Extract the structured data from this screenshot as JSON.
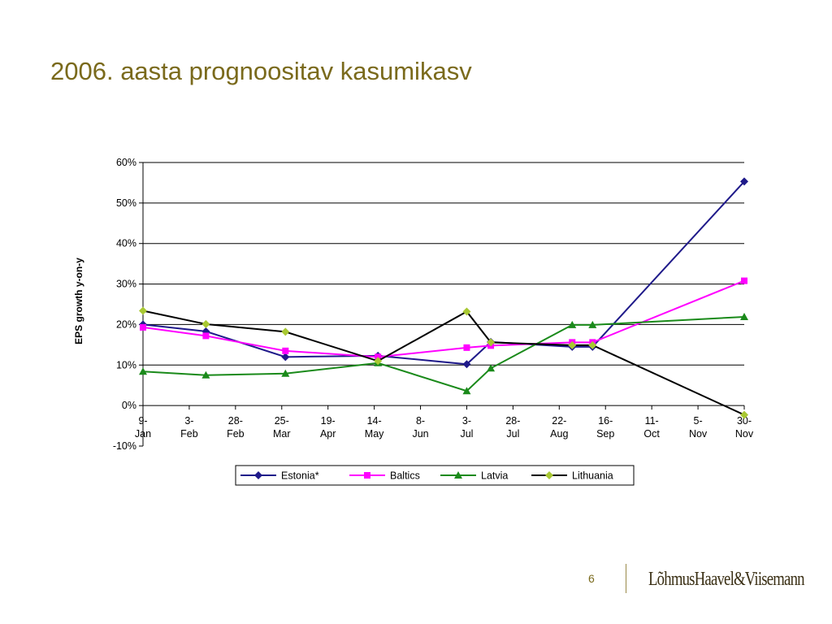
{
  "slide": {
    "title": "2006. aasta prognoositav kasumikasv",
    "page_number": "6",
    "brand_logo": "LõhmusHaavel&Viisemann"
  },
  "colors": {
    "title": "#7a6a1c",
    "estonia": "#1f1a8a",
    "baltics": "#ff00ff",
    "latvia": "#1a8a1a",
    "lithuania": "#000000",
    "lithuania_marker": "#a8c832"
  },
  "chart_data": {
    "type": "line",
    "ylabel": "EPS growth y-on-y",
    "xlabel": "",
    "ylim": [
      -10,
      60
    ],
    "yticks": [
      -10,
      0,
      10,
      20,
      30,
      40,
      50,
      60
    ],
    "ytick_labels": [
      "-10%",
      "0%",
      "10%",
      "20%",
      "30%",
      "40%",
      "50%",
      "60%"
    ],
    "grid": true,
    "legend_position": "bottom",
    "x_date_ticks": [
      {
        "date": "2006-01-09",
        "line1": "9-",
        "line2": "Jan"
      },
      {
        "date": "2006-02-03",
        "line1": "3-",
        "line2": "Feb"
      },
      {
        "date": "2006-02-28",
        "line1": "28-",
        "line2": "Feb"
      },
      {
        "date": "2006-03-25",
        "line1": "25-",
        "line2": "Mar"
      },
      {
        "date": "2006-04-19",
        "line1": "19-",
        "line2": "Apr"
      },
      {
        "date": "2006-05-14",
        "line1": "14-",
        "line2": "May"
      },
      {
        "date": "2006-06-08",
        "line1": "8-",
        "line2": "Jun"
      },
      {
        "date": "2006-07-03",
        "line1": "3-",
        "line2": "Jul"
      },
      {
        "date": "2006-07-28",
        "line1": "28-",
        "line2": "Jul"
      },
      {
        "date": "2006-08-22",
        "line1": "22-",
        "line2": "Aug"
      },
      {
        "date": "2006-09-16",
        "line1": "16-",
        "line2": "Sep"
      },
      {
        "date": "2006-10-11",
        "line1": "11-",
        "line2": "Oct"
      },
      {
        "date": "2006-11-05",
        "line1": "5-",
        "line2": "Nov"
      },
      {
        "date": "2006-11-30",
        "line1": "30-",
        "line2": "Nov"
      }
    ],
    "series": [
      {
        "name": "Estonia*",
        "color": "#1f1a8a",
        "marker": "diamond",
        "points": [
          {
            "date": "2006-01-09",
            "y": 20.0
          },
          {
            "date": "2006-02-12",
            "y": 18.3
          },
          {
            "date": "2006-03-27",
            "y": 12.0
          },
          {
            "date": "2006-05-16",
            "y": 12.3
          },
          {
            "date": "2006-07-03",
            "y": 10.2
          },
          {
            "date": "2006-07-16",
            "y": 15.7
          },
          {
            "date": "2006-08-29",
            "y": 14.5
          },
          {
            "date": "2006-09-09",
            "y": 14.5
          },
          {
            "date": "2006-11-30",
            "y": 55.3
          }
        ]
      },
      {
        "name": "Baltics",
        "color": "#ff00ff",
        "marker": "square",
        "points": [
          {
            "date": "2006-01-09",
            "y": 19.3
          },
          {
            "date": "2006-02-12",
            "y": 17.2
          },
          {
            "date": "2006-03-27",
            "y": 13.5
          },
          {
            "date": "2006-05-16",
            "y": 12.0
          },
          {
            "date": "2006-07-03",
            "y": 14.3
          },
          {
            "date": "2006-07-16",
            "y": 14.8
          },
          {
            "date": "2006-08-29",
            "y": 15.6
          },
          {
            "date": "2006-09-09",
            "y": 15.6
          },
          {
            "date": "2006-11-30",
            "y": 30.8
          }
        ]
      },
      {
        "name": "Latvia",
        "color": "#1a8a1a",
        "marker": "triangle",
        "points": [
          {
            "date": "2006-01-09",
            "y": 8.4
          },
          {
            "date": "2006-02-12",
            "y": 7.5
          },
          {
            "date": "2006-03-27",
            "y": 7.9
          },
          {
            "date": "2006-05-16",
            "y": 10.5
          },
          {
            "date": "2006-07-03",
            "y": 3.6
          },
          {
            "date": "2006-07-16",
            "y": 9.2
          },
          {
            "date": "2006-08-29",
            "y": 19.9
          },
          {
            "date": "2006-09-09",
            "y": 19.9
          },
          {
            "date": "2006-11-30",
            "y": 21.9
          }
        ]
      },
      {
        "name": "Lithuania",
        "color": "#000000",
        "marker": "diamond",
        "marker_color": "#a8c832",
        "points": [
          {
            "date": "2006-01-09",
            "y": 23.4
          },
          {
            "date": "2006-02-12",
            "y": 20.1
          },
          {
            "date": "2006-03-27",
            "y": 18.2
          },
          {
            "date": "2006-05-16",
            "y": 11.0
          },
          {
            "date": "2006-07-03",
            "y": 23.2
          },
          {
            "date": "2006-07-16",
            "y": 15.6
          },
          {
            "date": "2006-08-29",
            "y": 14.9
          },
          {
            "date": "2006-09-09",
            "y": 14.9
          },
          {
            "date": "2006-11-30",
            "y": -2.3
          }
        ]
      }
    ]
  }
}
